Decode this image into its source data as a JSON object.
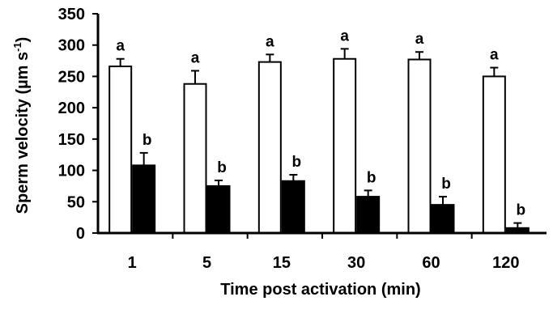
{
  "chart_data": {
    "type": "bar",
    "title": "",
    "xlabel": "Time post activation (min)",
    "ylabel": "Sperm velocity (µm s",
    "ylabel_sup": "-1",
    "ylabel_close": ")",
    "ylim": [
      0,
      350
    ],
    "yticks": [
      0,
      50,
      100,
      150,
      200,
      250,
      300,
      350
    ],
    "grid": false,
    "categories": [
      "1",
      "5",
      "15",
      "30",
      "60",
      "120"
    ],
    "series": [
      {
        "fill": "#ffffff",
        "values": [
          266,
          238,
          273,
          278,
          277,
          250
        ],
        "errors": [
          12,
          21,
          12,
          16,
          12,
          14
        ],
        "letters": [
          "a",
          "a",
          "a",
          "a",
          "a",
          "a"
        ]
      },
      {
        "fill": "#000000",
        "values": [
          108,
          75,
          83,
          58,
          45,
          8
        ],
        "errors": [
          20,
          9,
          10,
          10,
          13,
          8
        ],
        "letters": [
          "b",
          "b",
          "b",
          "b",
          "b",
          "b"
        ]
      }
    ]
  }
}
